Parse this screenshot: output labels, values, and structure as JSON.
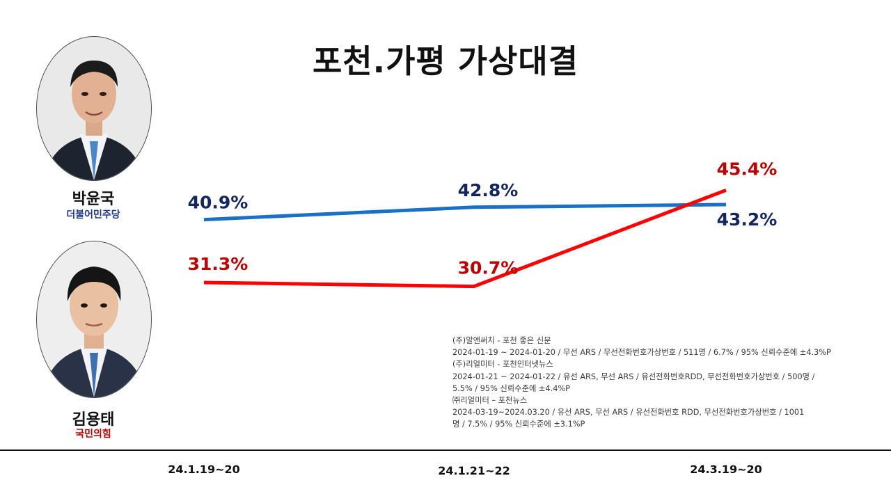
{
  "candidates": [
    {
      "name": "박윤국",
      "party": "더불어민주당",
      "color": "#1f3a8a",
      "line_color": "#1a6fc6",
      "label_color": "#13275e",
      "photo": "portrait-older-man-suit-blue-tie"
    },
    {
      "name": "김용태",
      "party": "국민의힘",
      "color": "#c00000",
      "line_color": "#ff0000",
      "label_color": "#c00000",
      "photo": "portrait-young-man-suit-blue-tie"
    }
  ],
  "chart_data": {
    "type": "line",
    "title": "포천.가평 가상대결",
    "categories": [
      "24.1.19~20",
      "24.1.21~22",
      "24.3.19~20"
    ],
    "series": [
      {
        "name": "박윤국",
        "values": [
          40.9,
          42.8,
          43.2
        ],
        "labels": [
          "40.9%",
          "42.8%",
          "43.2%"
        ],
        "color": "#1a6fc6"
      },
      {
        "name": "김용태",
        "values": [
          31.3,
          30.7,
          45.4
        ],
        "labels": [
          "31.3%",
          "30.7%",
          "45.4%"
        ],
        "color": "#ff0000"
      }
    ],
    "xlabel": "",
    "ylabel": "",
    "grid": false,
    "legend": "left (candidate photos)"
  },
  "notes": [
    "(주)알앤써치 - 포천 좋은 신문",
    "2024-01-19 ~ 2024-01-20 / 무선 ARS / 무선전화번호가상번호  / 511명 / 6.7% / 95% 신뢰수준에 ±4.3%P",
    "(주)리얼미터 - 포천인터넷뉴스",
    "2024-01-21 ~ 2024-01-22 / 유선 ARS, 무선 ARS / 유선전화번호RDD,  무선전화번호가상번호  / 500명 /",
    "5.5% / 95% 신뢰수준에 ±4.4%P",
    "㈜리얼미터 – 포천뉴스",
    "2024-03-19~2024.03.20  / 유선 ARS, 무선 ARS / 유선전화번호 RDD, 무선전화번호가상번호  / 1001",
    "명 / 7.5% / 95% 신뢰수준에 ±3.1%P"
  ]
}
